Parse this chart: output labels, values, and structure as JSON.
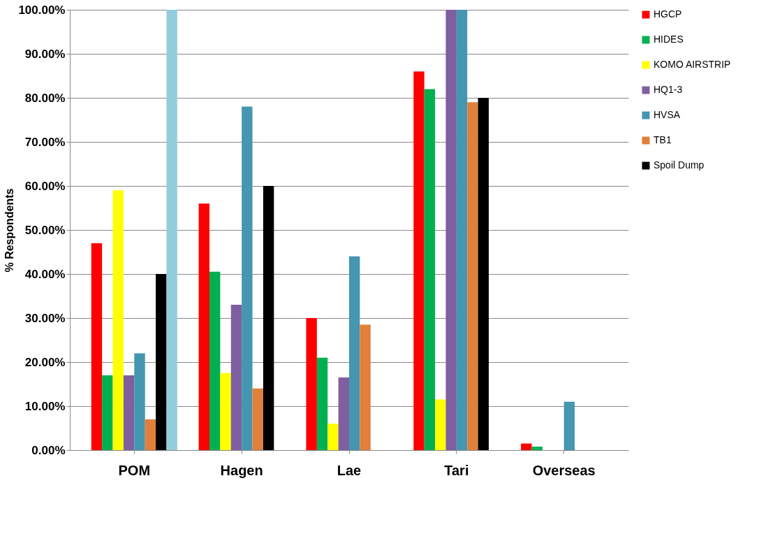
{
  "chart_data": {
    "type": "bar",
    "ylabel": "% Respondents",
    "categories": [
      "POM",
      "Hagen",
      "Lae",
      "Tari",
      "Overseas"
    ],
    "series": [
      {
        "name": "HGCP",
        "color": "#ff0000",
        "values": [
          47,
          56,
          30,
          86,
          1.5
        ]
      },
      {
        "name": "HIDES",
        "color": "#00b050",
        "values": [
          17,
          40.5,
          21,
          82,
          0.8
        ]
      },
      {
        "name": "KOMO AIRSTRIP",
        "color": "#ffff00",
        "values": [
          59,
          17.5,
          6,
          11.5,
          0
        ]
      },
      {
        "name": "HQ1-3",
        "color": "#7f5fa0",
        "values": [
          17,
          33,
          16.5,
          100,
          0
        ]
      },
      {
        "name": "HVSA",
        "color": "#4596b0",
        "values": [
          22,
          78,
          44,
          100,
          11
        ]
      },
      {
        "name": "TB1",
        "color": "#e0803a",
        "values": [
          7,
          14,
          28.5,
          79,
          0
        ]
      },
      {
        "name": "Spoil Dump",
        "color": "#000000",
        "values": [
          40,
          60,
          0,
          80,
          0
        ]
      },
      {
        "color": "#93cddd",
        "values": [
          100,
          null,
          null,
          null,
          null
        ]
      }
    ],
    "ylim": [
      0,
      100
    ],
    "yticks": [
      {
        "value": 0,
        "label": "0.00%"
      },
      {
        "value": 10,
        "label": "10.00%"
      },
      {
        "value": 20,
        "label": "20.00%"
      },
      {
        "value": 30,
        "label": "30.00%"
      },
      {
        "value": 40,
        "label": "40.00%"
      },
      {
        "value": 50,
        "label": "50.00%"
      },
      {
        "value": 60,
        "label": "60.00%"
      },
      {
        "value": 70,
        "label": "70.00%"
      },
      {
        "value": 80,
        "label": "80.00%"
      },
      {
        "value": 90,
        "label": "90.00%"
      },
      {
        "value": 100,
        "label": "100.00%"
      }
    ],
    "grid": "y",
    "legend": "right"
  }
}
